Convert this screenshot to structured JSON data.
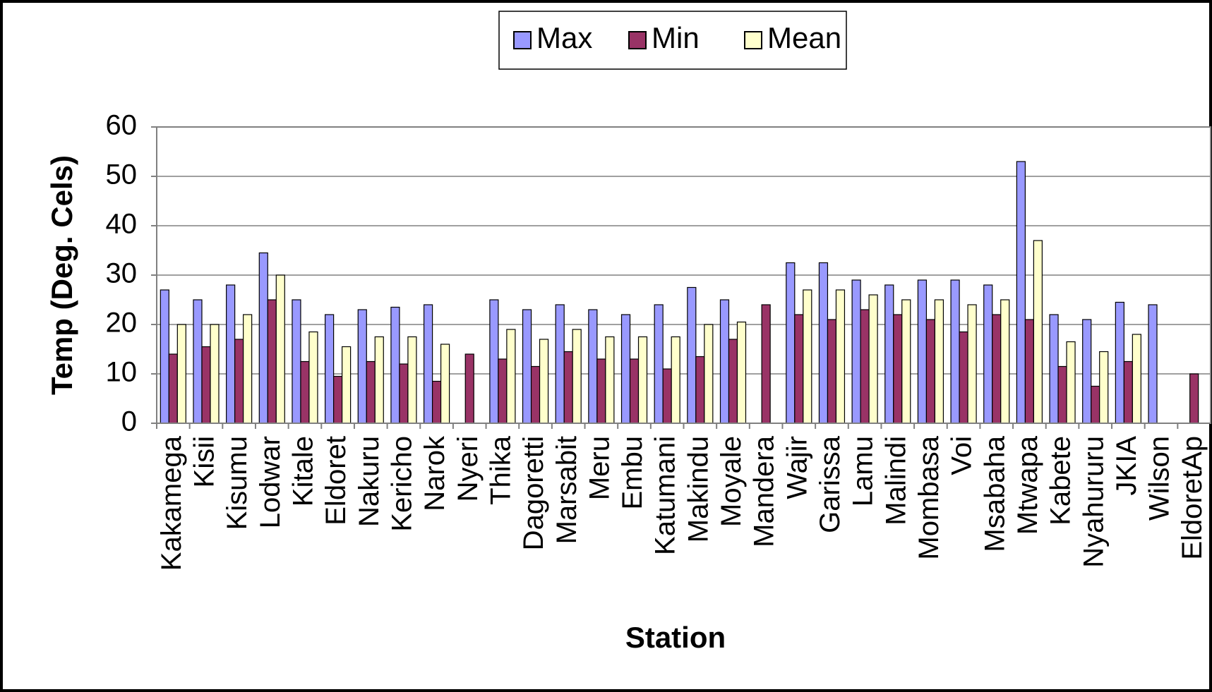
{
  "chart_data": {
    "type": "bar",
    "title": "",
    "xlabel": "Station",
    "ylabel": "Temp (Deg. Cels)",
    "ylim": [
      0,
      60
    ],
    "yticks": [
      0,
      10,
      20,
      30,
      40,
      50,
      60
    ],
    "grid": true,
    "legend_position": "top-center",
    "categories": [
      "Kakamega",
      "Kisii",
      "Kisumu",
      "Lodwar",
      "Kitale",
      "Eldoret",
      "Nakuru",
      "Kericho",
      "Narok",
      "Nyeri",
      "Thika",
      "Dagoretti",
      "Marsabit",
      "Meru",
      "Embu",
      "Katumani",
      "Makindu",
      "Moyale",
      "Mandera",
      "Wajir",
      "Garissa",
      "Lamu",
      "Malindi",
      "Mombasa",
      "Voi",
      "Msabaha",
      "Mtwapa",
      "Kabete",
      "Nyahururu",
      "JKIA",
      "Wilson",
      "EldoretAp"
    ],
    "series": [
      {
        "name": "Max",
        "color": "#9999ff",
        "values": [
          27,
          25,
          28,
          34.5,
          25,
          22,
          23,
          23.5,
          24,
          null,
          25,
          23,
          24,
          23,
          22,
          24,
          27.5,
          25,
          null,
          32.5,
          32.5,
          29,
          28,
          29,
          29,
          28,
          53,
          22,
          21,
          24.5,
          24,
          null
        ]
      },
      {
        "name": "Min",
        "color": "#993366",
        "values": [
          14,
          15.5,
          17,
          25,
          12.5,
          9.5,
          12.5,
          12,
          8.5,
          14,
          13,
          11.5,
          14.5,
          13,
          13,
          11,
          13.5,
          17,
          24,
          22,
          21,
          23,
          22,
          21,
          18.5,
          22,
          21,
          11.5,
          7.5,
          12.5,
          null,
          10
        ]
      },
      {
        "name": "Mean",
        "color": "#ffffcc",
        "values": [
          20,
          20,
          22,
          30,
          18.5,
          15.5,
          17.5,
          17.5,
          16,
          null,
          19,
          17,
          19,
          17.5,
          17.5,
          17.5,
          20,
          20.5,
          null,
          27,
          27,
          26,
          25,
          25,
          24,
          25,
          37,
          16.5,
          14.5,
          18,
          null,
          null
        ]
      }
    ]
  }
}
